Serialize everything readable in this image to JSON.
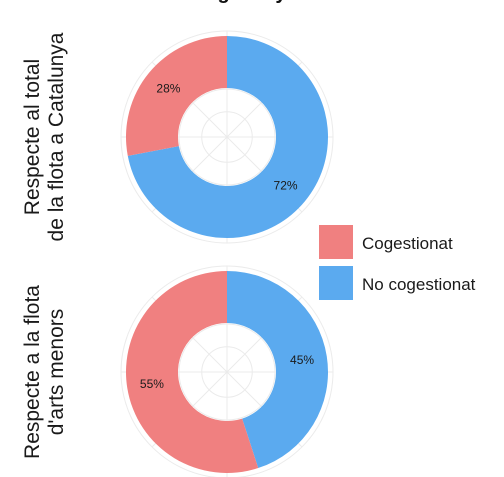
{
  "title": "…g… …y…",
  "legend": {
    "placement": "right",
    "entries": [
      {
        "label": "Cogestionat",
        "color": "#F08080"
      },
      {
        "label": "No cogestionat",
        "color": "#5BAAEF"
      }
    ]
  },
  "chart_data": [
    {
      "type": "pie",
      "variant": "donut",
      "row_label": [
        "Respecte al total",
        "de la flota a Catalunya"
      ],
      "slices": [
        {
          "name": "No cogestionat",
          "value": 72,
          "label": "72%",
          "color": "#5BAAEF"
        },
        {
          "name": "Cogestionat",
          "value": 28,
          "label": "28%",
          "color": "#F08080"
        }
      ],
      "start": "12 o'clock",
      "direction": "clockwise",
      "grid": true
    },
    {
      "type": "pie",
      "variant": "donut",
      "row_label": [
        "Respecte a la flota",
        "d'arts menors"
      ],
      "slices": [
        {
          "name": "No cogestionat",
          "value": 45,
          "label": "45%",
          "color": "#5BAAEF"
        },
        {
          "name": "Cogestionat",
          "value": 55,
          "label": "55%",
          "color": "#F08080"
        }
      ],
      "start": "12 o'clock",
      "direction": "clockwise",
      "grid": true
    }
  ]
}
